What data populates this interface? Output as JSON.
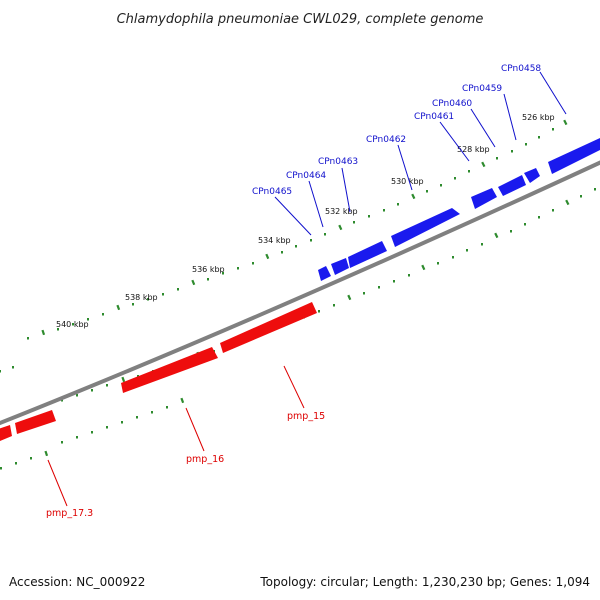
{
  "title": "Chlamydophila pneumoniae CWL029, complete genome",
  "footer": {
    "accession": "Accession: NC_000922",
    "info": "Topology: circular; Length: 1,230,230 bp; Genes: 1,094"
  },
  "colors": {
    "forward_gene": "#1a1aee",
    "reverse_gene": "#ee0d0d",
    "backbone": "#808080",
    "ticks": "#2e8b2e",
    "label_forward": "#1010cc",
    "label_reverse": "#dd0000"
  },
  "scale_labels": [
    "526 kbp",
    "528 kbp",
    "530 kbp",
    "532 kbp",
    "534 kbp",
    "536 kbp",
    "538 kbp",
    "540 kbp"
  ],
  "forward_genes": [
    "CPn0458",
    "CPn0459",
    "CPn0460",
    "CPn0461",
    "CPn0462",
    "CPn0463",
    "CPn0464",
    "CPn0465"
  ],
  "reverse_genes": [
    "pmp_15",
    "pmp_16",
    "pmp_17.3"
  ]
}
